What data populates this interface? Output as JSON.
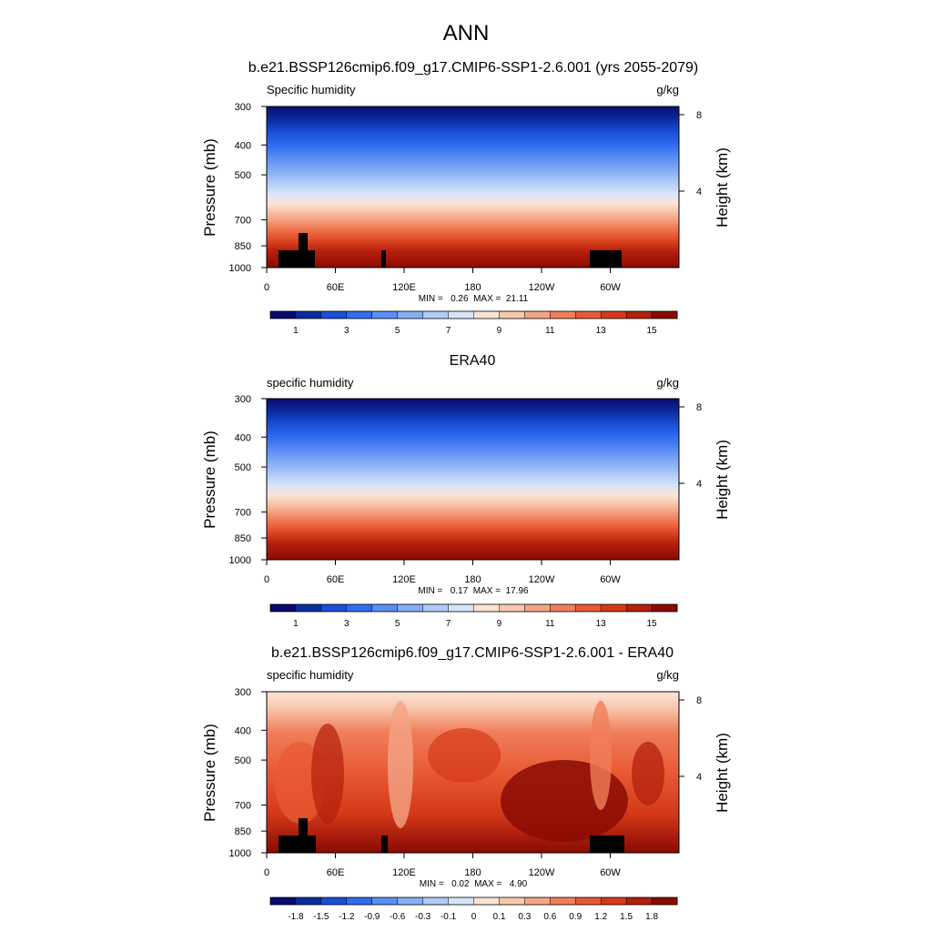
{
  "figure": {
    "title": "ANN"
  },
  "chart_data": [
    {
      "type": "heatmap",
      "title": "b.e21.BSSP126cmip6.f09_g17.CMIP6-SSP1-2.6.001 (yrs 2055-2079)",
      "left_label": "Specific humidity",
      "right_label": "g/kg",
      "ylabel": "Pressure (mb)",
      "y2label": "Height (km)",
      "stats": "MIN =   0.26  MAX =  21.11",
      "colormap": "BlueRed"
    },
    {
      "type": "heatmap",
      "title": "ERA40",
      "left_label": "specific humidity",
      "right_label": "g/kg",
      "ylabel": "Pressure (mb)",
      "y2label": "Height (km)",
      "stats": "MIN =   0.17  MAX =  17.96",
      "colormap": "BlueRed"
    },
    {
      "type": "heatmap",
      "title": "b.e21.BSSP126cmip6.f09_g17.CMIP6-SSP1-2.6.001 - ERA40",
      "left_label": "specific humidity",
      "right_label": "g/kg",
      "ylabel": "Pressure (mb)",
      "y2label": "Height (km)",
      "stats": "MIN =   0.02  MAX =   4.90",
      "colormap": "BlueRed"
    }
  ],
  "axes": {
    "x_ticks": [
      "0",
      "60E",
      "120E",
      "180",
      "120W",
      "60W"
    ],
    "x_values": [
      0,
      60,
      120,
      180,
      240,
      300
    ],
    "x_range": [
      0,
      360
    ],
    "y_ticks": [
      "300",
      "400",
      "500",
      "700",
      "850",
      "1000"
    ],
    "y_values": [
      300,
      400,
      500,
      700,
      850,
      1000
    ],
    "y_range": [
      1000,
      300
    ],
    "y_scale": "log",
    "y2_ticks": [
      "8",
      "4"
    ],
    "y2_values_km": [
      8,
      4
    ]
  },
  "colorbars": {
    "mean_labels": [
      "1",
      "3",
      "5",
      "7",
      "9",
      "11",
      "13",
      "15"
    ],
    "diff_labels": [
      "-1.8",
      "-1.5",
      "-1.2",
      "-0.9",
      "-0.6",
      "-0.3",
      "-0.1",
      "0",
      "0.1",
      "0.3",
      "0.6",
      "0.9",
      "1.2",
      "1.5",
      "1.8"
    ],
    "colors": [
      "#0a0a6e",
      "#0b2c9e",
      "#1a4fd8",
      "#2f6cf0",
      "#5a8ef4",
      "#86aef6",
      "#b0cbf7",
      "#d6e4fa",
      "#fbe4d6",
      "#f8c7ae",
      "#f4a484",
      "#f07e5a",
      "#e85a34",
      "#d53a18",
      "#b3200c",
      "#8a0a04"
    ]
  }
}
